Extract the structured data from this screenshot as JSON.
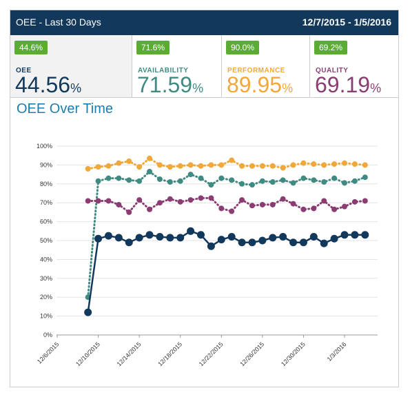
{
  "header": {
    "title": "OEE - Last 30 Days",
    "date_range": "12/7/2015 - 1/5/2016"
  },
  "kpis": [
    {
      "badge": "44.6%",
      "label": "OEE",
      "value": "44.56",
      "unit": "%",
      "color": "#12395b"
    },
    {
      "badge": "71.6%",
      "label": "AVAILABILITY",
      "value": "71.59",
      "unit": "%",
      "color": "#3f8b82"
    },
    {
      "badge": "90.0%",
      "label": "PERFORMANCE",
      "value": "89.95",
      "unit": "%",
      "color": "#f0a83a"
    },
    {
      "badge": "69.2%",
      "label": "QUALITY",
      "value": "69.19",
      "unit": "%",
      "color": "#8a3d72"
    }
  ],
  "section_title": "OEE Over Time",
  "chart_data": {
    "type": "line",
    "x": [
      "12/9/2015",
      "12/10/2015",
      "12/11/2015",
      "12/12/2015",
      "12/13/2015",
      "12/14/2015",
      "12/15/2015",
      "12/16/2015",
      "12/17/2015",
      "12/18/2015",
      "12/19/2015",
      "12/20/2015",
      "12/21/2015",
      "12/22/2015",
      "12/23/2015",
      "12/24/2015",
      "12/25/2015",
      "12/26/2015",
      "12/27/2015",
      "12/28/2015",
      "12/29/2015",
      "12/30/2015",
      "12/31/2015",
      "1/1/2016",
      "1/2/2016",
      "1/3/2016",
      "1/4/2016",
      "1/5/2016"
    ],
    "series": [
      {
        "color": "#f0a83a",
        "style": "dotted",
        "values": [
          88,
          89,
          89.5,
          91,
          92,
          89,
          93.5,
          90,
          89,
          89.5,
          90,
          89.5,
          90,
          90,
          92.5,
          89.5,
          89.5,
          89.5,
          89.5,
          88.5,
          90,
          91,
          90.5,
          90,
          90.5,
          91,
          90.5,
          90
        ]
      },
      {
        "color": "#3f8b82",
        "style": "dotted",
        "values": [
          20,
          81.5,
          83,
          83,
          82,
          81.5,
          86.5,
          82.5,
          81,
          81.5,
          85,
          83,
          79.5,
          83,
          82,
          80,
          79.5,
          81.5,
          81,
          82,
          80.5,
          83,
          82,
          81,
          83,
          80.5,
          81.5,
          83.5
        ]
      },
      {
        "color": "#8a3d72",
        "style": "dotted",
        "values": [
          71,
          71,
          71,
          69,
          65,
          71.5,
          66.5,
          70,
          72,
          70.5,
          71.5,
          72.5,
          72.5,
          67,
          65.5,
          71.5,
          68.5,
          69,
          69,
          72,
          69.5,
          66.5,
          67,
          71,
          66.5,
          68,
          70.5,
          71
        ]
      },
      {
        "color": "#12395b",
        "style": "solid",
        "values": [
          12,
          51,
          52.5,
          51.5,
          49,
          51.5,
          53,
          52,
          51.5,
          51.5,
          55,
          53,
          47,
          50.5,
          52,
          49,
          49,
          50,
          51.5,
          52,
          49,
          49,
          52,
          48.5,
          51,
          53,
          53,
          53
        ]
      }
    ],
    "x_tick_labels": [
      "12/6/2015",
      "12/10/2015",
      "12/14/2015",
      "12/18/2015",
      "12/22/2015",
      "12/26/2015",
      "12/30/2015",
      "1/3/2016"
    ],
    "y_tick_labels": [
      "0%",
      "10%",
      "20%",
      "30%",
      "40%",
      "50%",
      "60%",
      "70%",
      "80%",
      "90%",
      "100%"
    ],
    "ylim": [
      0,
      100
    ],
    "grid": true,
    "legend": "none"
  }
}
